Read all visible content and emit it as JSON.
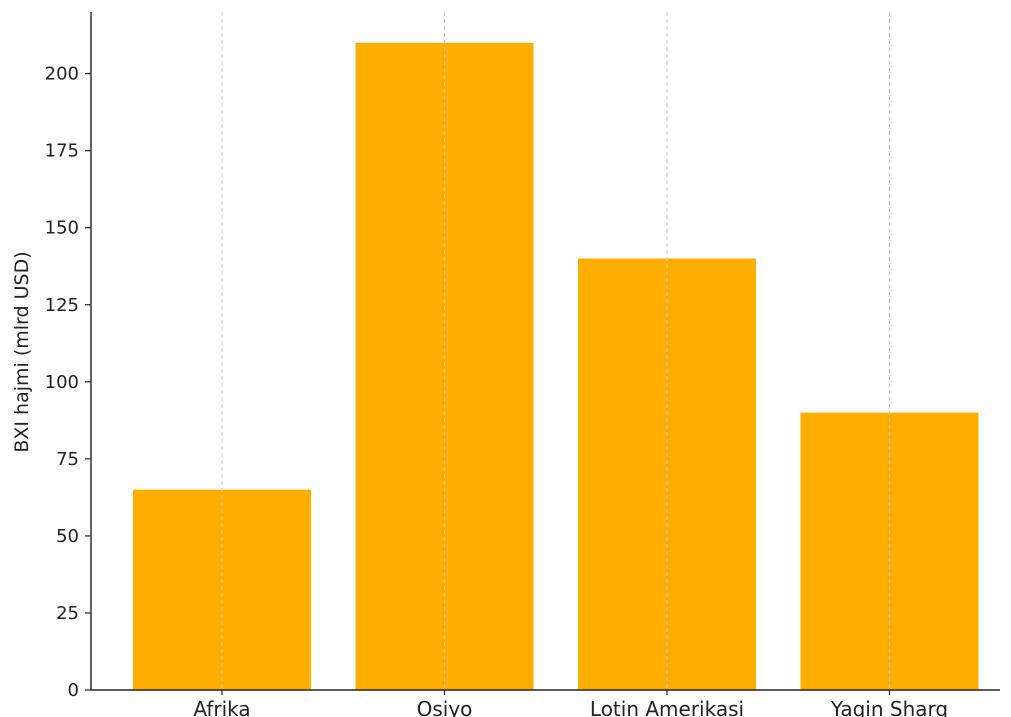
{
  "chart_data": {
    "type": "bar",
    "categories": [
      "Afrika",
      "Osiyo",
      "Lotin Amerikasi",
      "Yaqin Sharq"
    ],
    "values": [
      65,
      210,
      140,
      90
    ],
    "title": "",
    "xlabel": "",
    "ylabel": "BXI hajmi (mlrd USD)",
    "ylim": [
      0,
      220
    ],
    "yticks": [
      0,
      25,
      50,
      75,
      100,
      125,
      150,
      175,
      200
    ],
    "grid": "vertical dashed",
    "bar_color": "#FFAE00"
  }
}
